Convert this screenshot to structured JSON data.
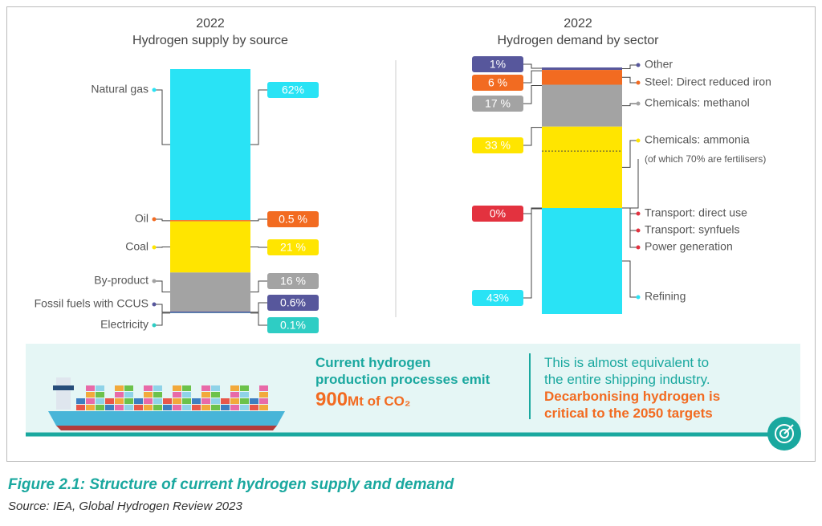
{
  "chart_data": [
    {
      "type": "stacked-bar",
      "year": "2022",
      "title": "Hydrogen supply by source",
      "segments": [
        {
          "names": [
            "Natural gas"
          ],
          "value": 62,
          "value_label": "62%",
          "color": "#29e3f5"
        },
        {
          "names": [
            "Oil"
          ],
          "value": 0.5,
          "value_label": "0.5 %",
          "color": "#f26b21"
        },
        {
          "names": [
            "Coal"
          ],
          "value": 21,
          "value_label": "21 %",
          "color": "#ffe500"
        },
        {
          "names": [
            "By-product"
          ],
          "value": 16,
          "value_label": "16 %",
          "color": "#a3a3a3"
        },
        {
          "names": [
            "Fossil fuels with CCUS"
          ],
          "value": 0.6,
          "value_label": "0.6%",
          "color": "#57579c"
        },
        {
          "names": [
            "Electricity"
          ],
          "value": 0.1,
          "value_label": "0.1%",
          "color": "#2ecdc4"
        }
      ]
    },
    {
      "type": "stacked-bar",
      "year": "2022",
      "title": "Hydrogen demand by sector",
      "segments": [
        {
          "names": [
            "Other"
          ],
          "value": 1,
          "value_label": "1%",
          "color": "#57579c"
        },
        {
          "names": [
            "Steel: Direct reduced iron"
          ],
          "value": 6,
          "value_label": "6 %",
          "color": "#f26b21"
        },
        {
          "names": [
            "Chemicals: methanol"
          ],
          "value": 17,
          "value_label": "17 %",
          "color": "#a3a3a3"
        },
        {
          "names": [
            "Chemicals: ammonia"
          ],
          "note": "(of which 70% are fertilisers)",
          "value": 33,
          "value_label": "33 %",
          "color": "#ffe500"
        },
        {
          "names": [
            "Transport: direct use",
            "Transport: synfuels",
            "Power generation"
          ],
          "value": 0,
          "value_label": "0%",
          "color": "#e3323f"
        },
        {
          "names": [
            "Refining"
          ],
          "value": 43,
          "value_label": "43%",
          "color": "#29e3f5"
        }
      ]
    }
  ],
  "infobox": {
    "left_lines": [
      "Current hydrogen",
      "production processes emit"
    ],
    "amount": "900",
    "unit": "Mt of CO₂",
    "right_lines": [
      "This is almost equivalent to",
      "the entire shipping industry."
    ],
    "right_emphasis_lines": [
      "Decarbonising hydrogen is",
      "critical to the 2050 targets"
    ]
  },
  "caption": {
    "title": "Figure 2.1: Structure of current hydrogen supply and demand",
    "source": "Source: IEA, Global Hydrogen Review 2023"
  }
}
